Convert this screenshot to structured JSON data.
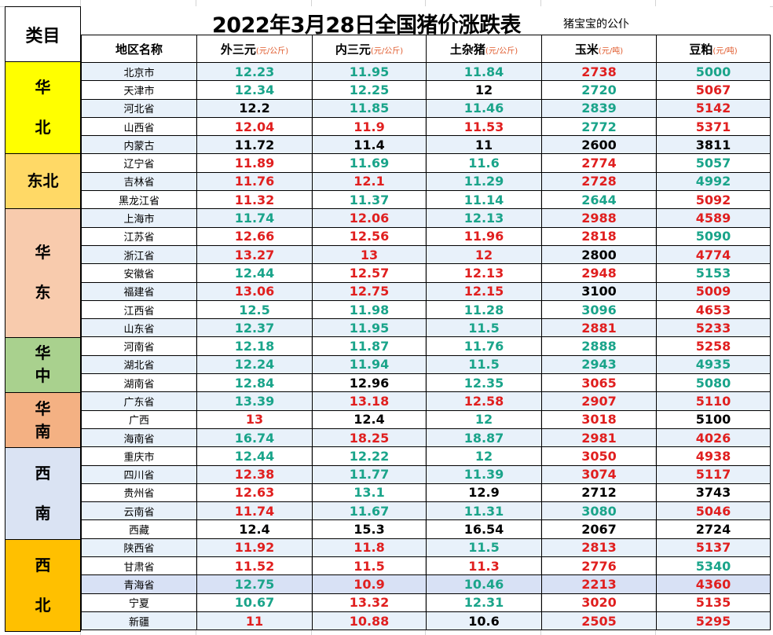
{
  "title": "2022年3月28日全国猪价涨跌表",
  "subtitle": "猪宝宝的公仆",
  "category_header": "类目",
  "columns": {
    "region": {
      "label": "地区名称",
      "unit": ""
    },
    "outer3": {
      "label": "外三元",
      "unit": "(元/公斤)"
    },
    "inner3": {
      "label": "内三元",
      "unit": "(元/公斤)"
    },
    "mixed": {
      "label": "土杂猪",
      "unit": "(元/公斤)"
    },
    "corn": {
      "label": "玉米",
      "unit": "(元/吨)"
    },
    "soy": {
      "label": "豆粕",
      "unit": "(元/吨)"
    }
  },
  "categories": [
    {
      "name_lines": [
        "华",
        "北"
      ],
      "color": "#ffff00",
      "rows": 5
    },
    {
      "name_lines": [
        "东北"
      ],
      "color": "#ffd966",
      "rows": 3
    },
    {
      "name_lines": [
        "华",
        "东"
      ],
      "color": "#f8cbad",
      "rows": 7
    },
    {
      "name_lines": [
        "华",
        "中"
      ],
      "color": "#a9d18e",
      "rows": 3
    },
    {
      "name_lines": [
        "华",
        "南"
      ],
      "color": "#f4b183",
      "rows": 3
    },
    {
      "name_lines": [
        "西",
        "南"
      ],
      "color": "#dae3f3",
      "rows": 5
    },
    {
      "name_lines": [
        "西",
        "北"
      ],
      "color": "#ffc000",
      "rows": 5
    }
  ],
  "trend_colors": {
    "up": "#e01f1f",
    "down": "#1aa48a",
    "flat": "#000000"
  },
  "rows": [
    {
      "region": "北京市",
      "cells": [
        [
          "12.23",
          "down"
        ],
        [
          "11.95",
          "down"
        ],
        [
          "11.84",
          "down"
        ],
        [
          "2738",
          "up"
        ],
        [
          "5000",
          "down"
        ]
      ]
    },
    {
      "region": "天津市",
      "cells": [
        [
          "12.34",
          "down"
        ],
        [
          "12.25",
          "down"
        ],
        [
          "12",
          "flat"
        ],
        [
          "2720",
          "down"
        ],
        [
          "5067",
          "up"
        ]
      ]
    },
    {
      "region": "河北省",
      "cells": [
        [
          "12.2",
          "flat"
        ],
        [
          "11.85",
          "down"
        ],
        [
          "11.46",
          "down"
        ],
        [
          "2839",
          "down"
        ],
        [
          "5142",
          "up"
        ]
      ]
    },
    {
      "region": "山西省",
      "cells": [
        [
          "12.04",
          "up"
        ],
        [
          "11.9",
          "up"
        ],
        [
          "11.53",
          "up"
        ],
        [
          "2772",
          "down"
        ],
        [
          "5371",
          "up"
        ]
      ]
    },
    {
      "region": "内蒙古",
      "cells": [
        [
          "11.72",
          "flat"
        ],
        [
          "11.4",
          "flat"
        ],
        [
          "11",
          "flat"
        ],
        [
          "2600",
          "flat"
        ],
        [
          "3811",
          "flat"
        ]
      ]
    },
    {
      "region": "辽宁省",
      "cells": [
        [
          "11.89",
          "up"
        ],
        [
          "11.69",
          "down"
        ],
        [
          "11.6",
          "down"
        ],
        [
          "2774",
          "up"
        ],
        [
          "5057",
          "down"
        ]
      ]
    },
    {
      "region": "吉林省",
      "cells": [
        [
          "11.76",
          "up"
        ],
        [
          "12.1",
          "up"
        ],
        [
          "11.29",
          "down"
        ],
        [
          "2728",
          "up"
        ],
        [
          "4992",
          "down"
        ]
      ]
    },
    {
      "region": "黑龙江省",
      "cells": [
        [
          "11.32",
          "up"
        ],
        [
          "11.37",
          "down"
        ],
        [
          "11.14",
          "down"
        ],
        [
          "2644",
          "down"
        ],
        [
          "5092",
          "up"
        ]
      ]
    },
    {
      "region": "上海市",
      "cells": [
        [
          "11.74",
          "down"
        ],
        [
          "12.06",
          "up"
        ],
        [
          "12.13",
          "down"
        ],
        [
          "2988",
          "up"
        ],
        [
          "4589",
          "up"
        ]
      ]
    },
    {
      "region": "江苏省",
      "cells": [
        [
          "12.66",
          "up"
        ],
        [
          "12.56",
          "up"
        ],
        [
          "11.96",
          "up"
        ],
        [
          "2818",
          "up"
        ],
        [
          "5090",
          "down"
        ]
      ]
    },
    {
      "region": "浙江省",
      "cells": [
        [
          "13.27",
          "up"
        ],
        [
          "13",
          "up"
        ],
        [
          "12",
          "up"
        ],
        [
          "2800",
          "flat"
        ],
        [
          "4774",
          "up"
        ]
      ]
    },
    {
      "region": "安徽省",
      "cells": [
        [
          "12.44",
          "down"
        ],
        [
          "12.57",
          "up"
        ],
        [
          "12.13",
          "up"
        ],
        [
          "2948",
          "up"
        ],
        [
          "5153",
          "down"
        ]
      ]
    },
    {
      "region": "福建省",
      "cells": [
        [
          "13.06",
          "up"
        ],
        [
          "12.75",
          "up"
        ],
        [
          "12.15",
          "up"
        ],
        [
          "3100",
          "flat"
        ],
        [
          "5009",
          "up"
        ]
      ]
    },
    {
      "region": "江西省",
      "cells": [
        [
          "12.5",
          "down"
        ],
        [
          "11.98",
          "down"
        ],
        [
          "11.28",
          "down"
        ],
        [
          "3096",
          "down"
        ],
        [
          "4653",
          "up"
        ]
      ]
    },
    {
      "region": "山东省",
      "cells": [
        [
          "12.37",
          "down"
        ],
        [
          "11.95",
          "down"
        ],
        [
          "11.5",
          "down"
        ],
        [
          "2881",
          "up"
        ],
        [
          "5233",
          "up"
        ]
      ]
    },
    {
      "region": "河南省",
      "cells": [
        [
          "12.18",
          "down"
        ],
        [
          "11.87",
          "down"
        ],
        [
          "11.76",
          "down"
        ],
        [
          "2888",
          "down"
        ],
        [
          "5258",
          "up"
        ]
      ]
    },
    {
      "region": "湖北省",
      "cells": [
        [
          "12.24",
          "down"
        ],
        [
          "11.94",
          "down"
        ],
        [
          "11.5",
          "down"
        ],
        [
          "2943",
          "down"
        ],
        [
          "4935",
          "down"
        ]
      ]
    },
    {
      "region": "湖南省",
      "cells": [
        [
          "12.84",
          "down"
        ],
        [
          "12.96",
          "flat"
        ],
        [
          "12.35",
          "down"
        ],
        [
          "3065",
          "up"
        ],
        [
          "5080",
          "down"
        ]
      ]
    },
    {
      "region": "广东省",
      "cells": [
        [
          "13.39",
          "down"
        ],
        [
          "13.18",
          "up"
        ],
        [
          "12.58",
          "up"
        ],
        [
          "2907",
          "up"
        ],
        [
          "5110",
          "up"
        ]
      ]
    },
    {
      "region": "广西",
      "cells": [
        [
          "13",
          "up"
        ],
        [
          "12.4",
          "flat"
        ],
        [
          "12",
          "down"
        ],
        [
          "3018",
          "up"
        ],
        [
          "5100",
          "flat"
        ]
      ]
    },
    {
      "region": "海南省",
      "cells": [
        [
          "16.74",
          "down"
        ],
        [
          "18.25",
          "up"
        ],
        [
          "18.87",
          "down"
        ],
        [
          "2981",
          "up"
        ],
        [
          "4026",
          "up"
        ]
      ]
    },
    {
      "region": "重庆市",
      "cells": [
        [
          "12.44",
          "down"
        ],
        [
          "12.22",
          "down"
        ],
        [
          "12",
          "down"
        ],
        [
          "3050",
          "up"
        ],
        [
          "4938",
          "up"
        ]
      ]
    },
    {
      "region": "四川省",
      "cells": [
        [
          "12.38",
          "up"
        ],
        [
          "11.77",
          "down"
        ],
        [
          "11.39",
          "down"
        ],
        [
          "3074",
          "up"
        ],
        [
          "5117",
          "up"
        ]
      ]
    },
    {
      "region": "贵州省",
      "cells": [
        [
          "12.63",
          "up"
        ],
        [
          "13.1",
          "down"
        ],
        [
          "12.9",
          "flat"
        ],
        [
          "2712",
          "flat"
        ],
        [
          "3743",
          "flat"
        ]
      ]
    },
    {
      "region": "云南省",
      "cells": [
        [
          "11.74",
          "up"
        ],
        [
          "11.67",
          "down"
        ],
        [
          "11.31",
          "down"
        ],
        [
          "3080",
          "down"
        ],
        [
          "5046",
          "up"
        ]
      ]
    },
    {
      "region": "西藏",
      "cells": [
        [
          "12.4",
          "flat"
        ],
        [
          "15.3",
          "flat"
        ],
        [
          "16.54",
          "flat"
        ],
        [
          "2067",
          "flat"
        ],
        [
          "2724",
          "flat"
        ]
      ]
    },
    {
      "region": "陕西省",
      "cells": [
        [
          "11.92",
          "up"
        ],
        [
          "11.8",
          "up"
        ],
        [
          "11.5",
          "down"
        ],
        [
          "2813",
          "up"
        ],
        [
          "5137",
          "up"
        ]
      ]
    },
    {
      "region": "甘肃省",
      "cells": [
        [
          "11.52",
          "up"
        ],
        [
          "11.5",
          "up"
        ],
        [
          "11.3",
          "up"
        ],
        [
          "2776",
          "up"
        ],
        [
          "5340",
          "down"
        ]
      ]
    },
    {
      "region": "青海省",
      "cells": [
        [
          "12.75",
          "down"
        ],
        [
          "10.9",
          "up"
        ],
        [
          "10.46",
          "down"
        ],
        [
          "2213",
          "up"
        ],
        [
          "4360",
          "up"
        ]
      ]
    },
    {
      "region": "宁夏",
      "cells": [
        [
          "10.67",
          "down"
        ],
        [
          "13.32",
          "up"
        ],
        [
          "12.31",
          "down"
        ],
        [
          "3020",
          "up"
        ],
        [
          "5135",
          "up"
        ]
      ]
    },
    {
      "region": "新疆",
      "cells": [
        [
          "11",
          "up"
        ],
        [
          "10.88",
          "up"
        ],
        [
          "10.6",
          "flat"
        ],
        [
          "2505",
          "up"
        ],
        [
          "5295",
          "up"
        ]
      ]
    }
  ]
}
